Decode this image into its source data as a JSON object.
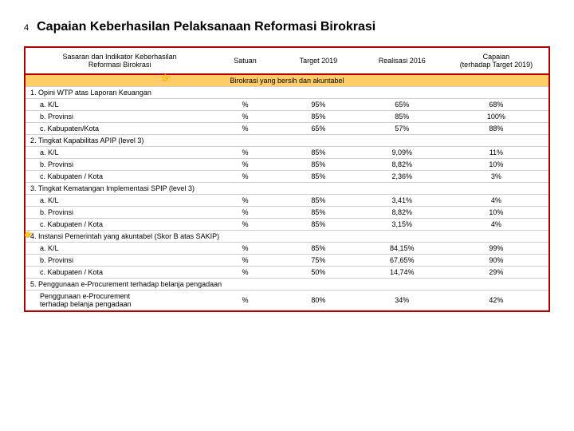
{
  "title": {
    "num": "4",
    "text": "Capaian Keberhasilan Pelaksanaan Reformasi Birokrasi"
  },
  "headers": {
    "col1": "Sasaran dan Indikator Keberhasilan\nReformasi Birokrasi",
    "col2": "Satuan",
    "col3": "Target 2019",
    "col4": "Realisasi 2016",
    "col5": "Capaian\n(terhadap Target 2019)"
  },
  "section": "Birokrasi yang bersih dan akuntabel",
  "groups": [
    {
      "label": "1. Opini WTP atas Laporan Keuangan",
      "rows": [
        {
          "label": "a. K/L",
          "satuan": "%",
          "target": "95%",
          "realisasi": "65%",
          "capaian": "68%"
        },
        {
          "label": "b. Provinsi",
          "satuan": "%",
          "target": "85%",
          "realisasi": "85%",
          "capaian": "100%"
        },
        {
          "label": "c. Kabupaten/Kota",
          "satuan": "%",
          "target": "65%",
          "realisasi": "57%",
          "capaian": "88%"
        }
      ]
    },
    {
      "label": "2. Tingkat Kapabilitas APIP (level 3)",
      "rows": [
        {
          "label": "a. K/L",
          "satuan": "%",
          "target": "85%",
          "realisasi": "9,09%",
          "capaian": "11%"
        },
        {
          "label": "b. Provinsi",
          "satuan": "%",
          "target": "85%",
          "realisasi": "8,82%",
          "capaian": "10%"
        },
        {
          "label": "c. Kabupaten / Kota",
          "satuan": "%",
          "target": "85%",
          "realisasi": "2,36%",
          "capaian": "3%"
        }
      ]
    },
    {
      "label": "3. Tingkat Kematangan Implementasi SPIP (level 3)",
      "rows": [
        {
          "label": "a. K/L",
          "satuan": "%",
          "target": "85%",
          "realisasi": "3,41%",
          "capaian": "4%"
        },
        {
          "label": "b. Provinsi",
          "satuan": "%",
          "target": "85%",
          "realisasi": "8,82%",
          "capaian": "10%"
        },
        {
          "label": "c. Kabupaten / Kota",
          "satuan": "%",
          "target": "85%",
          "realisasi": "3,15%",
          "capaian": "4%"
        }
      ]
    },
    {
      "label": "4. Instansi Pemerintah yang akuntabel (Skor B atas SAKIP)",
      "rows": [
        {
          "label": "a. K/L",
          "satuan": "%",
          "target": "85%",
          "realisasi": "84,15%",
          "capaian": "99%"
        },
        {
          "label": "b. Provinsi",
          "satuan": "%",
          "target": "75%",
          "realisasi": "67,65%",
          "capaian": "90%"
        },
        {
          "label": "c. Kabupaten / Kota",
          "satuan": "%",
          "target": "50%",
          "realisasi": "14,74%",
          "capaian": "29%"
        }
      ]
    },
    {
      "label": "5. Penggunaan e-Procurement terhadap belanja pengadaan",
      "rows": [
        {
          "label": "Penggunaan e-Procurement\nterhadap belanja pengadaan",
          "satuan": "%",
          "target": "80%",
          "realisasi": "34%",
          "capaian": "42%"
        }
      ]
    }
  ],
  "colors": {
    "border": "#b00000",
    "section_bg": "#ffcc66",
    "row_border": "#d0d0d0"
  }
}
